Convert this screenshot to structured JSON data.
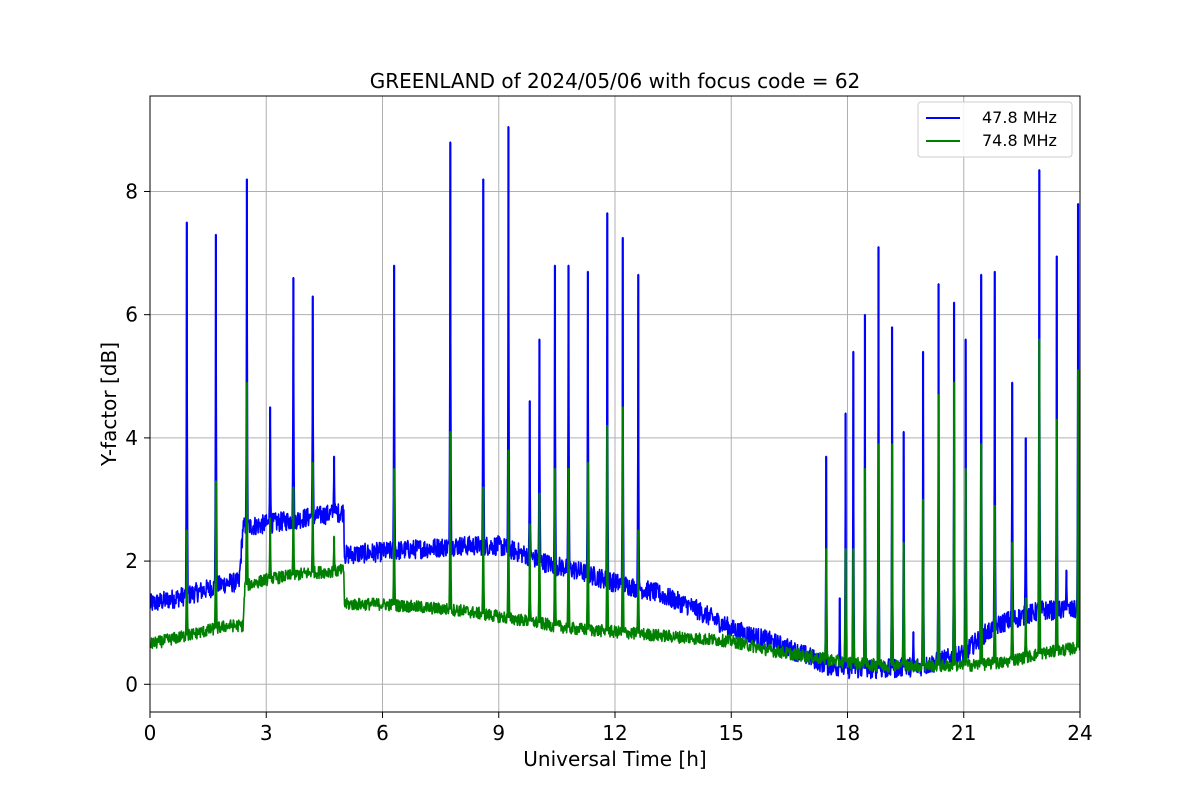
{
  "chart_data": {
    "type": "line",
    "title": "GREENLAND of 2024/05/06 with focus code = 62",
    "xlabel": "Universal Time [h]",
    "ylabel": "Y-factor [dB]",
    "xlim": [
      0,
      24
    ],
    "ylim": [
      -0.45,
      9.55
    ],
    "xticks": [
      0,
      3,
      6,
      9,
      12,
      15,
      18,
      21,
      24
    ],
    "yticks": [
      0,
      2,
      4,
      6,
      8
    ],
    "grid": true,
    "legend_position": "top-right",
    "series": [
      {
        "name": "47.8 MHz",
        "color": "#0000ff",
        "baseline": [
          [
            0,
            1.3
          ],
          [
            1,
            1.45
          ],
          [
            2,
            1.65
          ],
          [
            2.3,
            1.65
          ],
          [
            2.4,
            2.55
          ],
          [
            3,
            2.6
          ],
          [
            4,
            2.7
          ],
          [
            5,
            2.8
          ],
          [
            5.02,
            2.1
          ],
          [
            6,
            2.15
          ],
          [
            7,
            2.2
          ],
          [
            8,
            2.25
          ],
          [
            9,
            2.25
          ],
          [
            9.7,
            2.1
          ],
          [
            10.3,
            1.95
          ],
          [
            11,
            1.85
          ],
          [
            12,
            1.65
          ],
          [
            13,
            1.5
          ],
          [
            14,
            1.25
          ],
          [
            15,
            0.9
          ],
          [
            16,
            0.7
          ],
          [
            17,
            0.45
          ],
          [
            17.5,
            0.3
          ],
          [
            18,
            0.25
          ],
          [
            19,
            0.25
          ],
          [
            20,
            0.3
          ],
          [
            21,
            0.5
          ],
          [
            21.5,
            0.8
          ],
          [
            22,
            1.0
          ],
          [
            23,
            1.2
          ],
          [
            24,
            1.2
          ]
        ],
        "noise": 0.16,
        "spikes": [
          [
            0.95,
            7.5
          ],
          [
            1.7,
            7.3
          ],
          [
            2.5,
            8.2
          ],
          [
            3.1,
            4.5
          ],
          [
            3.7,
            6.6
          ],
          [
            4.2,
            6.3
          ],
          [
            4.75,
            3.7
          ],
          [
            6.3,
            6.8
          ],
          [
            7.75,
            8.8
          ],
          [
            8.6,
            8.2
          ],
          [
            9.25,
            9.05
          ],
          [
            9.8,
            4.6
          ],
          [
            10.05,
            5.6
          ],
          [
            10.45,
            6.8
          ],
          [
            10.8,
            6.8
          ],
          [
            11.3,
            6.7
          ],
          [
            11.8,
            7.65
          ],
          [
            12.2,
            7.25
          ],
          [
            12.6,
            6.65
          ],
          [
            17.45,
            3.7
          ],
          [
            17.8,
            1.4
          ],
          [
            17.95,
            4.4
          ],
          [
            18.15,
            5.4
          ],
          [
            18.45,
            6.0
          ],
          [
            18.8,
            7.1
          ],
          [
            19.15,
            5.8
          ],
          [
            19.45,
            4.1
          ],
          [
            19.7,
            0.85
          ],
          [
            19.95,
            5.4
          ],
          [
            20.35,
            6.5
          ],
          [
            20.75,
            6.2
          ],
          [
            21.05,
            5.6
          ],
          [
            21.45,
            6.65
          ],
          [
            21.8,
            6.7
          ],
          [
            22.25,
            4.9
          ],
          [
            22.6,
            4.0
          ],
          [
            22.95,
            8.35
          ],
          [
            23.4,
            6.95
          ],
          [
            23.65,
            1.85
          ],
          [
            23.95,
            7.8
          ]
        ]
      },
      {
        "name": "74.8 MHz",
        "color": "#008000",
        "baseline": [
          [
            0,
            0.65
          ],
          [
            1,
            0.8
          ],
          [
            2,
            0.95
          ],
          [
            2.4,
            0.95
          ],
          [
            2.45,
            1.6
          ],
          [
            3,
            1.7
          ],
          [
            4,
            1.8
          ],
          [
            5,
            1.85
          ],
          [
            5.02,
            1.3
          ],
          [
            6,
            1.3
          ],
          [
            7,
            1.25
          ],
          [
            8,
            1.2
          ],
          [
            9,
            1.1
          ],
          [
            10,
            1.0
          ],
          [
            10.4,
            0.95
          ],
          [
            11,
            0.9
          ],
          [
            12,
            0.85
          ],
          [
            13,
            0.8
          ],
          [
            14,
            0.75
          ],
          [
            15,
            0.7
          ],
          [
            16,
            0.55
          ],
          [
            17,
            0.45
          ],
          [
            18,
            0.35
          ],
          [
            19,
            0.3
          ],
          [
            20,
            0.3
          ],
          [
            21,
            0.3
          ],
          [
            22,
            0.35
          ],
          [
            23,
            0.5
          ],
          [
            24,
            0.6
          ]
        ],
        "noise": 0.1,
        "spikes": [
          [
            0.95,
            2.5
          ],
          [
            1.7,
            3.3
          ],
          [
            2.5,
            4.9
          ],
          [
            3.1,
            2.7
          ],
          [
            3.7,
            3.2
          ],
          [
            4.2,
            3.6
          ],
          [
            4.75,
            2.4
          ],
          [
            6.3,
            3.5
          ],
          [
            7.75,
            4.1
          ],
          [
            8.6,
            3.2
          ],
          [
            9.25,
            3.8
          ],
          [
            9.8,
            2.6
          ],
          [
            10.05,
            3.1
          ],
          [
            10.45,
            3.5
          ],
          [
            10.8,
            3.5
          ],
          [
            11.3,
            3.6
          ],
          [
            11.8,
            4.2
          ],
          [
            12.2,
            4.5
          ],
          [
            12.6,
            2.5
          ],
          [
            17.45,
            2.2
          ],
          [
            17.95,
            2.2
          ],
          [
            18.15,
            2.2
          ],
          [
            18.45,
            3.5
          ],
          [
            18.8,
            3.9
          ],
          [
            19.15,
            3.9
          ],
          [
            19.45,
            2.3
          ],
          [
            19.95,
            3.0
          ],
          [
            20.35,
            4.7
          ],
          [
            20.75,
            4.9
          ],
          [
            21.05,
            3.5
          ],
          [
            21.45,
            3.9
          ],
          [
            21.8,
            2.9
          ],
          [
            22.25,
            2.3
          ],
          [
            22.6,
            1.4
          ],
          [
            22.95,
            5.6
          ],
          [
            23.4,
            4.3
          ],
          [
            23.95,
            5.1
          ]
        ]
      }
    ]
  }
}
